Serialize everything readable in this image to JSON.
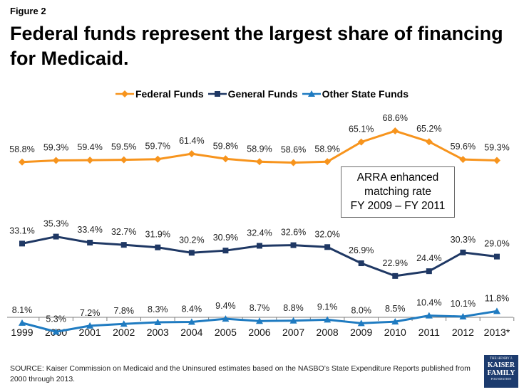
{
  "figure_label": "Figure 2",
  "title": "Federal funds represent the largest share of financing for Medicaid.",
  "annotation": {
    "lines": [
      "ARRA enhanced",
      "matching rate",
      "FY 2009 – FY 2011"
    ]
  },
  "source": "SOURCE: Kaiser Commission on Medicaid and the Uninsured estimates based on the NASBO’s State Expenditure Reports published from 2000 through 2013.",
  "logo": {
    "line1": "THE HENRY J.",
    "line2": "KAISER",
    "line3": "FAMILY",
    "line4": "FOUNDATION"
  },
  "chart_data": {
    "type": "line",
    "title": "Federal funds represent the largest share of financing for Medicaid.",
    "xlabel": "",
    "ylabel": "",
    "ylim": [
      0,
      80
    ],
    "grid": false,
    "legend_position": "top-center",
    "categories": [
      "1999",
      "2000",
      "2001",
      "2002",
      "2003",
      "2004",
      "2005",
      "2006",
      "2007",
      "2008",
      "2009",
      "2010",
      "2011",
      "2012",
      "2013*"
    ],
    "series": [
      {
        "name": "Federal Funds",
        "color": "#f7941d",
        "marker": "diamond",
        "values": [
          58.8,
          59.3,
          59.4,
          59.5,
          59.7,
          61.4,
          59.8,
          58.9,
          58.6,
          58.9,
          65.1,
          68.6,
          65.2,
          59.6,
          59.3
        ],
        "labels": [
          "58.8%",
          "59.3%",
          "59.4%",
          "59.5%",
          "59.7%",
          "61.4%",
          "59.8%",
          "58.9%",
          "58.6%",
          "58.9%",
          "65.1%",
          "68.6%",
          "65.2%",
          "59.6%",
          "59.3%"
        ]
      },
      {
        "name": "General Funds",
        "color": "#1f3864",
        "marker": "square",
        "values": [
          33.1,
          35.3,
          33.4,
          32.7,
          31.9,
          30.2,
          30.9,
          32.4,
          32.6,
          32.0,
          26.9,
          22.9,
          24.4,
          30.3,
          29.0
        ],
        "labels": [
          "33.1%",
          "35.3%",
          "33.4%",
          "32.7%",
          "31.9%",
          "30.2%",
          "30.9%",
          "32.4%",
          "32.6%",
          "32.0%",
          "26.9%",
          "22.9%",
          "24.4%",
          "30.3%",
          "29.0%"
        ]
      },
      {
        "name": "Other State Funds",
        "color": "#1f7bc1",
        "marker": "triangle",
        "values": [
          8.1,
          5.3,
          7.2,
          7.8,
          8.3,
          8.4,
          9.4,
          8.7,
          8.8,
          9.1,
          8.0,
          8.5,
          10.4,
          10.1,
          11.8
        ],
        "labels": [
          "8.1%",
          "5.3%",
          "7.2%",
          "7.8%",
          "8.3%",
          "8.4%",
          "9.4%",
          "8.7%",
          "8.8%",
          "9.1%",
          "8.0%",
          "8.5%",
          "10.4%",
          "10.1%",
          "11.8%"
        ]
      }
    ]
  }
}
